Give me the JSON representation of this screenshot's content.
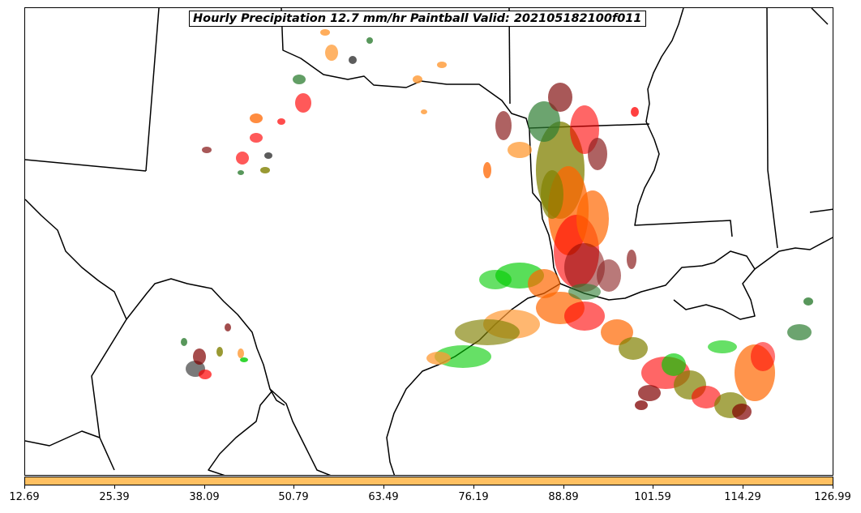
{
  "title": "Hourly Precipitation 12.7 mm/hr Paintball Valid: 202105182100f011",
  "map": {
    "region": "South-central United States and northwestern Gulf of Mexico",
    "boundaries": [
      "state",
      "country",
      "coastline"
    ],
    "member_colors": [
      "#00cc00",
      "#ff0000",
      "#ff6600",
      "#ff9933",
      "#808000",
      "#800000",
      "#8b2020",
      "#2e7d32",
      "#000000"
    ]
  },
  "colorbar": {
    "color": "#ffc061",
    "ticks": [
      "12.69",
      "25.39",
      "38.09",
      "50.79",
      "63.49",
      "76.19",
      "88.89",
      "101.59",
      "114.29",
      "126.99"
    ]
  }
}
